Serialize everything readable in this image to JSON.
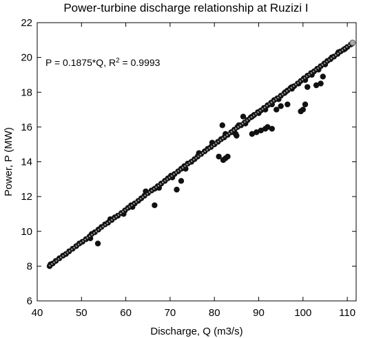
{
  "chart_data": {
    "type": "scatter",
    "title": "Power-turbine discharge relationship at Ruzizi I",
    "xlabel": "Discharge, Q (m3/s)",
    "ylabel": "Power, P (MW)",
    "xlim": [
      40,
      112
    ],
    "ylim": [
      6,
      22
    ],
    "x_ticks": [
      40,
      50,
      60,
      70,
      80,
      90,
      100,
      110
    ],
    "y_ticks": [
      6,
      8,
      10,
      12,
      14,
      16,
      18,
      20,
      22
    ],
    "grid": false,
    "legend": "none",
    "annotation": {
      "equation": "P = 0.1875*Q, R",
      "superscript": "2",
      "value_text": " = 0.9993"
    },
    "fit": {
      "slope": 0.1875,
      "intercept": 0,
      "x_range": [
        42.7,
        111.2
      ],
      "color": "#999999"
    },
    "series": [
      {
        "color": "#111111",
        "points": [
          [
            42.8,
            8.0
          ],
          [
            43.0,
            8.1
          ],
          [
            43.5,
            8.15
          ],
          [
            44.2,
            8.3
          ],
          [
            45.0,
            8.45
          ],
          [
            45.8,
            8.6
          ],
          [
            46.5,
            8.7
          ],
          [
            47.2,
            8.85
          ],
          [
            48.0,
            9.0
          ],
          [
            48.8,
            9.15
          ],
          [
            49.5,
            9.3
          ],
          [
            50.2,
            9.4
          ],
          [
            51.0,
            9.55
          ],
          [
            51.8,
            9.7
          ],
          [
            52.3,
            9.85
          ],
          [
            53.0,
            9.95
          ],
          [
            53.8,
            10.1
          ],
          [
            54.5,
            10.25
          ],
          [
            55.3,
            10.4
          ],
          [
            56.0,
            10.5
          ],
          [
            56.8,
            10.65
          ],
          [
            57.5,
            10.8
          ],
          [
            58.2,
            10.9
          ],
          [
            59.0,
            11.05
          ],
          [
            59.8,
            11.2
          ],
          [
            60.5,
            11.35
          ],
          [
            61.2,
            11.5
          ],
          [
            62.0,
            11.6
          ],
          [
            62.8,
            11.75
          ],
          [
            63.5,
            11.9
          ],
          [
            64.2,
            12.05
          ],
          [
            65.0,
            12.2
          ],
          [
            65.8,
            12.35
          ],
          [
            66.5,
            12.45
          ],
          [
            67.2,
            12.6
          ],
          [
            68.0,
            12.75
          ],
          [
            68.8,
            12.9
          ],
          [
            69.5,
            13.05
          ],
          [
            70.2,
            13.2
          ],
          [
            71.0,
            13.3
          ],
          [
            71.8,
            13.45
          ],
          [
            72.5,
            13.6
          ],
          [
            73.2,
            13.75
          ],
          [
            74.0,
            13.9
          ],
          [
            74.8,
            14.0
          ],
          [
            75.5,
            14.15
          ],
          [
            76.2,
            14.3
          ],
          [
            77.0,
            14.45
          ],
          [
            77.8,
            14.6
          ],
          [
            78.5,
            14.75
          ],
          [
            79.2,
            14.85
          ],
          [
            80.0,
            15.0
          ],
          [
            80.8,
            15.15
          ],
          [
            81.5,
            15.3
          ],
          [
            82.2,
            15.4
          ],
          [
            83.0,
            15.55
          ],
          [
            83.8,
            15.7
          ],
          [
            84.5,
            15.85
          ],
          [
            85.2,
            16.0
          ],
          [
            86.0,
            16.1
          ],
          [
            86.8,
            16.25
          ],
          [
            87.5,
            16.4
          ],
          [
            88.2,
            16.55
          ],
          [
            89.0,
            16.7
          ],
          [
            89.8,
            16.85
          ],
          [
            90.5,
            16.95
          ],
          [
            91.2,
            17.1
          ],
          [
            92.0,
            17.25
          ],
          [
            92.8,
            17.4
          ],
          [
            93.5,
            17.55
          ],
          [
            94.2,
            17.65
          ],
          [
            95.0,
            17.8
          ],
          [
            95.8,
            17.95
          ],
          [
            96.5,
            18.1
          ],
          [
            97.2,
            18.25
          ],
          [
            98.0,
            18.35
          ],
          [
            98.8,
            18.5
          ],
          [
            99.5,
            18.65
          ],
          [
            100.2,
            18.8
          ],
          [
            101.0,
            18.95
          ],
          [
            101.8,
            19.1
          ],
          [
            102.5,
            19.2
          ],
          [
            103.2,
            19.35
          ],
          [
            104.0,
            19.5
          ],
          [
            104.8,
            19.65
          ],
          [
            105.5,
            19.8
          ],
          [
            106.2,
            19.9
          ],
          [
            107.0,
            20.05
          ],
          [
            107.8,
            20.2
          ],
          [
            108.5,
            20.35
          ],
          [
            109.2,
            20.45
          ],
          [
            110.0,
            20.6
          ],
          [
            110.8,
            20.75
          ],
          [
            111.1,
            20.8
          ],
          [
            52.0,
            9.6
          ],
          [
            56.5,
            10.7
          ],
          [
            59.5,
            11.0
          ],
          [
            61.5,
            11.4
          ],
          [
            64.5,
            12.3
          ],
          [
            67.5,
            12.5
          ],
          [
            70.5,
            13.1
          ],
          [
            73.5,
            13.6
          ],
          [
            76.5,
            14.5
          ],
          [
            79.5,
            15.1
          ],
          [
            82.5,
            15.6
          ],
          [
            84.5,
            15.7
          ],
          [
            85.5,
            16.1
          ],
          [
            87.0,
            16.2
          ],
          [
            88.5,
            16.6
          ],
          [
            90.0,
            16.8
          ],
          [
            91.5,
            17.0
          ],
          [
            93.0,
            17.3
          ],
          [
            94.5,
            17.6
          ],
          [
            96.0,
            18.0
          ],
          [
            97.5,
            18.2
          ],
          [
            99.0,
            18.5
          ],
          [
            100.5,
            18.7
          ],
          [
            102.0,
            19.0
          ],
          [
            103.5,
            19.3
          ],
          [
            105.0,
            19.6
          ],
          [
            106.5,
            20.0
          ],
          [
            108.0,
            20.3
          ],
          [
            109.5,
            20.5
          ],
          [
            53.7,
            9.3
          ],
          [
            66.5,
            11.5
          ],
          [
            71.5,
            12.4
          ],
          [
            72.5,
            12.9
          ],
          [
            81.0,
            14.3
          ],
          [
            82.0,
            14.1
          ],
          [
            82.5,
            14.2
          ],
          [
            83.0,
            14.3
          ],
          [
            81.8,
            16.1
          ],
          [
            84.8,
            15.6
          ],
          [
            88.5,
            15.6
          ],
          [
            89.5,
            15.7
          ],
          [
            90.5,
            15.8
          ],
          [
            91.5,
            15.9
          ],
          [
            92.0,
            16.0
          ],
          [
            93.0,
            15.9
          ],
          [
            95.0,
            17.2
          ],
          [
            96.5,
            17.3
          ],
          [
            99.5,
            16.9
          ],
          [
            100.0,
            17.0
          ],
          [
            100.5,
            17.3
          ],
          [
            101.0,
            18.3
          ],
          [
            103.0,
            18.4
          ],
          [
            104.0,
            18.5
          ],
          [
            104.5,
            18.9
          ],
          [
            97.5,
            18.3
          ],
          [
            94.0,
            17.0
          ],
          [
            86.5,
            16.6
          ],
          [
            85.0,
            15.5
          ]
        ]
      }
    ]
  }
}
